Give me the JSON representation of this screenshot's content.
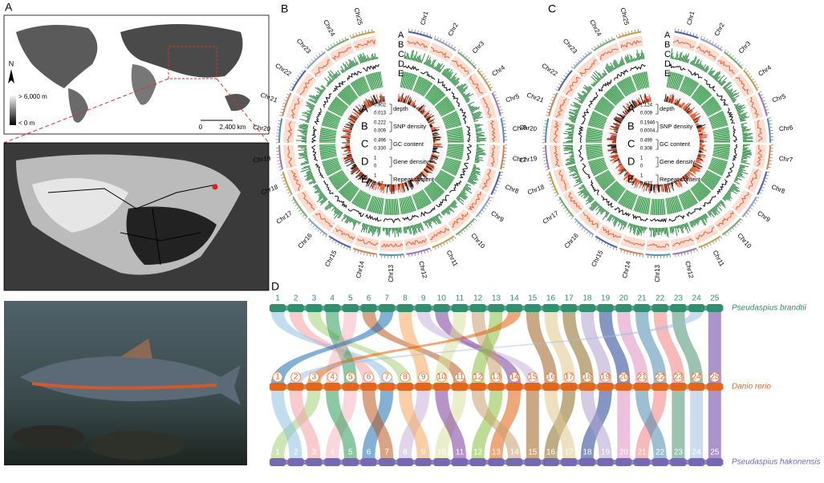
{
  "panel_a": {
    "label": "A",
    "north": "N",
    "elev_high": "> 6,000 m",
    "elev_low": "< 0 m",
    "scale_zero": "0",
    "scale_dist": "2,400 km"
  },
  "panels_circos": [
    {
      "label": "B",
      "chromosomes": [
        "Chr1",
        "Chr2",
        "Chr3",
        "Chr4",
        "Chr5",
        "Chr6",
        "Chr7",
        "Chr8",
        "Chr9",
        "Chr10",
        "Chr11",
        "Chr12",
        "Chr13",
        "Chr14",
        "Chr15",
        "Chr16",
        "Chr17",
        "Chr18",
        "Chr19",
        "Chr20",
        "Chr21",
        "Chr22",
        "Chr23",
        "Chr24",
        "Chr25"
      ],
      "track_letters": [
        "A",
        "B",
        "C",
        "D",
        "E"
      ],
      "legend": [
        {
          "letter": "A",
          "name": "depth",
          "max": "0.902",
          "min": "0.013"
        },
        {
          "letter": "B",
          "name": "SNP density",
          "max": "0.222",
          "min": "0.009"
        },
        {
          "letter": "C",
          "name": "GC content",
          "max": "0.496",
          "min": "0.330"
        },
        {
          "letter": "D",
          "name": "Gene density",
          "max": "1",
          "min": "0"
        },
        {
          "letter": "E",
          "name": "Repeat content",
          "max": "1",
          "min": "0.07"
        }
      ]
    },
    {
      "label": "C",
      "chromosomes": [
        "Chr1",
        "Chr2",
        "Chr3",
        "Chr4",
        "Chr5",
        "Chr6",
        "Chr7",
        "Chr8",
        "Chr9",
        "Chr10",
        "Chr11",
        "Chr12",
        "Chr13",
        "Chr14",
        "Chr15",
        "Chr16",
        "Chr17",
        "Chr18",
        "Chr19",
        "Chr20",
        "Chr21",
        "Chr22",
        "Chr23",
        "Chr24",
        "Chr25"
      ],
      "track_letters": [
        "A",
        "B",
        "C",
        "D",
        "E"
      ],
      "legend": [
        {
          "letter": "A",
          "name": "depth",
          "max": "1.124",
          "min": "0.009"
        },
        {
          "letter": "B",
          "name": "SNP density",
          "max": "0.1946",
          "min": "0.0004"
        },
        {
          "letter": "C",
          "name": "GC content",
          "max": "0.499",
          "min": "0.308"
        },
        {
          "letter": "D",
          "name": "Gene density",
          "max": "1",
          "min": "0"
        },
        {
          "letter": "E",
          "name": "Repeat content",
          "max": "1",
          "min": "0.037"
        }
      ]
    }
  ],
  "panel_d": {
    "label": "D",
    "genomes": [
      {
        "name": "Pseudaspius brandtii",
        "color": "#2f8f6f",
        "chromosomes": [
          1,
          2,
          3,
          4,
          5,
          6,
          7,
          8,
          9,
          10,
          11,
          12,
          13,
          14,
          15,
          16,
          17,
          18,
          19,
          20,
          21,
          22,
          23,
          24,
          25
        ]
      },
      {
        "name": "Danio rerio",
        "color": "#e2661c",
        "chromosomes": [
          1,
          2,
          3,
          4,
          5,
          6,
          7,
          8,
          9,
          10,
          11,
          12,
          13,
          14,
          15,
          16,
          17,
          18,
          19,
          20,
          21,
          22,
          23,
          24,
          25
        ]
      },
      {
        "name": "Pseudaspius hakonensis",
        "color": "#7668b3",
        "chromosomes": [
          1,
          2,
          3,
          4,
          5,
          6,
          7,
          8,
          9,
          10,
          11,
          12,
          13,
          14,
          15,
          16,
          17,
          18,
          19,
          20,
          21,
          22,
          23,
          24,
          25
        ]
      }
    ]
  }
}
